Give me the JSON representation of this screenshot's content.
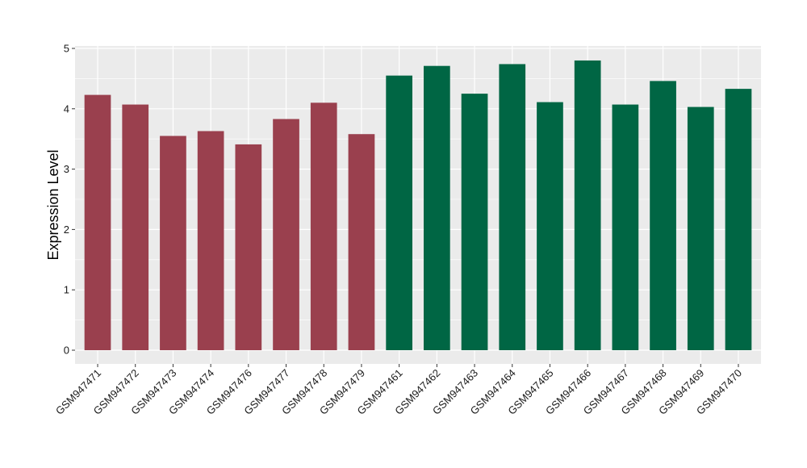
{
  "chart_data": {
    "type": "bar",
    "title": "",
    "xlabel": "",
    "ylabel": "Expression Level",
    "ylim": [
      0,
      5
    ],
    "yticks": [
      0,
      1,
      2,
      3,
      4,
      5
    ],
    "grid": true,
    "legend": "none",
    "categories": [
      "GSM947471",
      "GSM947472",
      "GSM947473",
      "GSM947474",
      "GSM947476",
      "GSM947477",
      "GSM947478",
      "GSM947479",
      "GSM947461",
      "GSM947462",
      "GSM947463",
      "GSM947464",
      "GSM947465",
      "GSM947466",
      "GSM947467",
      "GSM947468",
      "GSM947469",
      "GSM947470"
    ],
    "values": [
      4.23,
      4.07,
      3.55,
      3.63,
      3.41,
      3.83,
      4.1,
      3.58,
      4.55,
      4.71,
      4.25,
      4.74,
      4.11,
      4.8,
      4.07,
      4.46,
      4.03,
      4.33
    ],
    "group_colors": [
      "#9a404e",
      "#9a404e",
      "#9a404e",
      "#9a404e",
      "#9a404e",
      "#9a404e",
      "#9a404e",
      "#9a404e",
      "#006644",
      "#006644",
      "#006644",
      "#006644",
      "#006644",
      "#006644",
      "#006644",
      "#006644",
      "#006644",
      "#006644"
    ],
    "panel_background": "#ebebeb",
    "grid_color": "#ffffff"
  }
}
